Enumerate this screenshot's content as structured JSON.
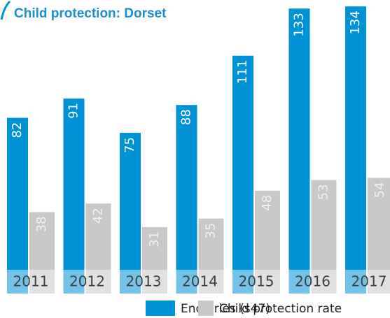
{
  "chart_data": {
    "type": "bar",
    "title": "Child protection: Dorset",
    "categories": [
      "2011",
      "2012",
      "2013",
      "2014",
      "2015",
      "2016",
      "2017"
    ],
    "series": [
      {
        "name": "Enquiries (s47)",
        "color": "#0092d6",
        "values": [
          82,
          91,
          75,
          88,
          111,
          133,
          134
        ]
      },
      {
        "name": "Child protection rate",
        "color": "#c8c8c8",
        "values": [
          38,
          42,
          31,
          35,
          48,
          53,
          54
        ]
      }
    ],
    "ylim": [
      0,
      137
    ],
    "legend": "bottom"
  }
}
